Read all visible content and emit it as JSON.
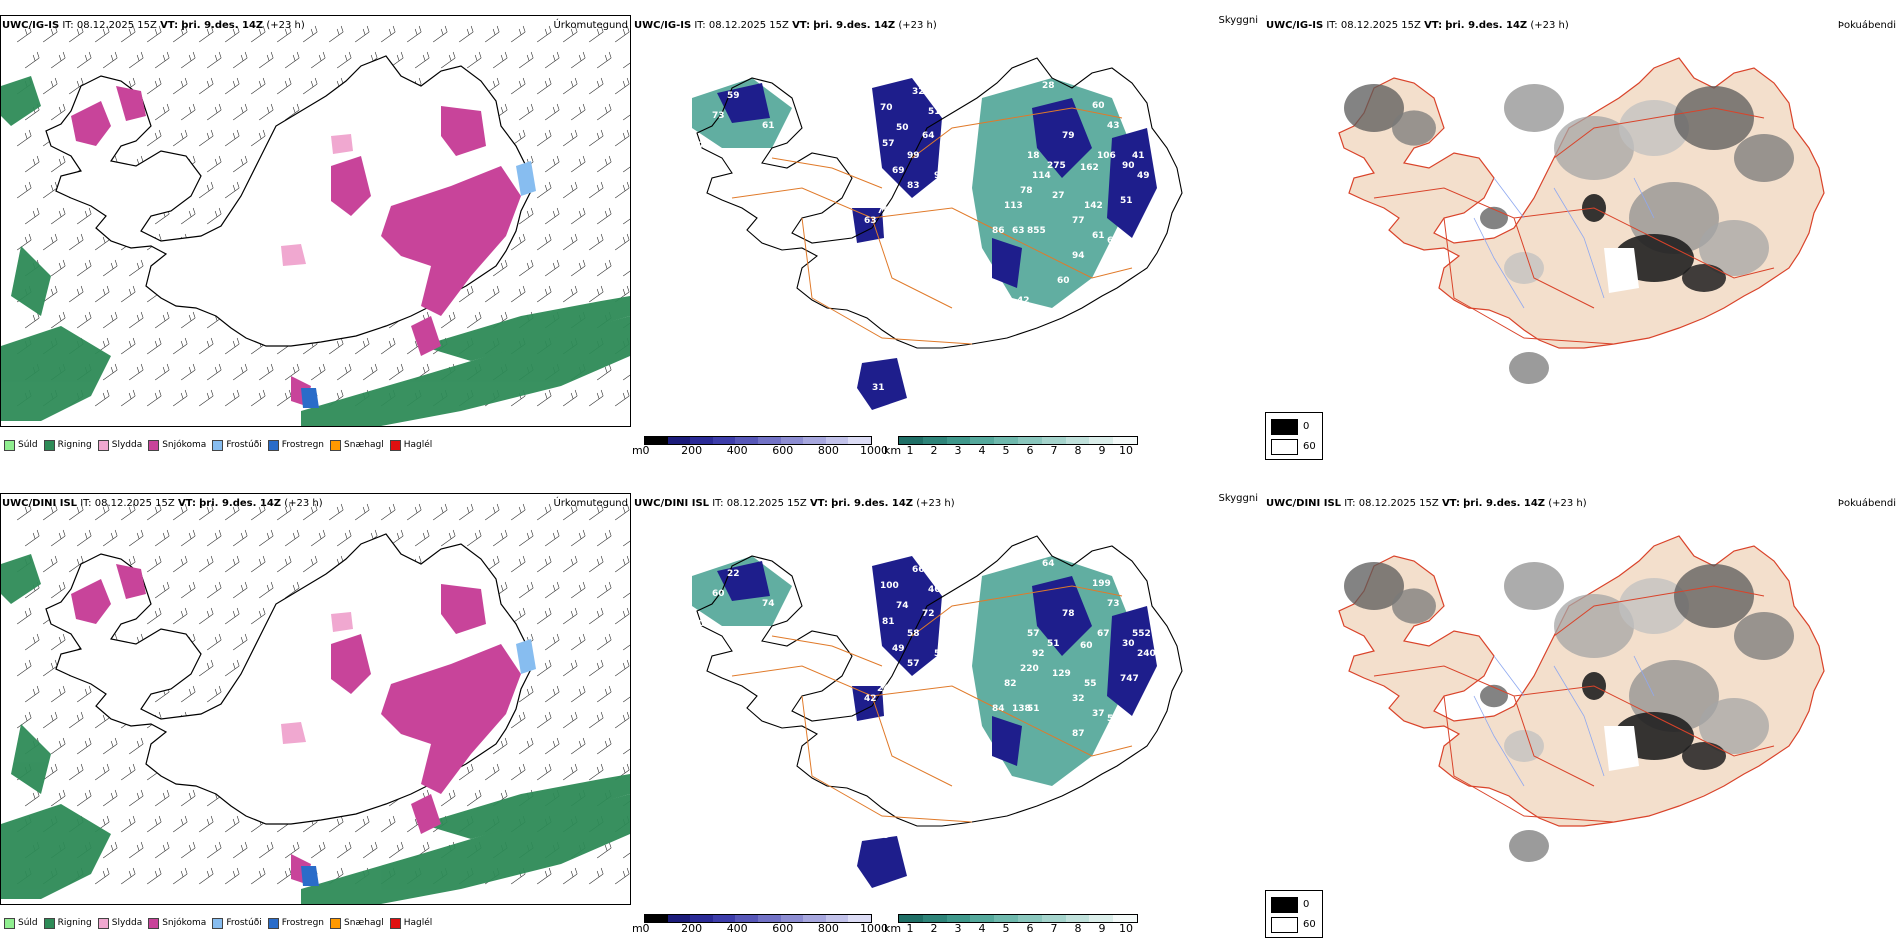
{
  "rows": [
    {
      "model": "UWC/IG-IS",
      "it_label": "IT:",
      "it_value": "08.12.2025 15Z",
      "vt_label": "VT:",
      "vt_value": "þri. 9.des. 14Z",
      "lead": "(+23 h)",
      "precip_title": "Úrkomutegund",
      "cloud_title": "Skyggni",
      "fog_title": "Þokuábendi",
      "height_labels": [
        "59",
        "73",
        "61",
        "97",
        "70",
        "32",
        "51",
        "50",
        "57",
        "64",
        "99",
        "69",
        "83",
        "95",
        "63",
        "75",
        "57",
        "31"
      ],
      "vis_labels": [
        "28",
        "60",
        "79",
        "43",
        "106",
        "275",
        "162",
        "90",
        "41",
        "49",
        "18",
        "114",
        "78",
        "27",
        "142",
        "51",
        "113",
        "86",
        "63",
        "855",
        "77",
        "61",
        "62",
        "59",
        "94",
        "60",
        "42"
      ]
    },
    {
      "model": "UWC/DINI ISL",
      "it_label": "IT:",
      "it_value": "08.12.2025 15Z",
      "vt_label": "VT:",
      "vt_value": "þri. 9.des. 14Z",
      "lead": "(+23 h)",
      "precip_title": "Úrkomutegund",
      "cloud_title": "Skyggni",
      "fog_title": "Þokuábendi",
      "height_labels": [
        "22",
        "60",
        "74",
        "101",
        "100",
        "66",
        "46",
        "74",
        "81",
        "72",
        "58",
        "49",
        "57",
        "52",
        "42",
        "24",
        "188"
      ],
      "vis_labels": [
        "64",
        "199",
        "78",
        "73",
        "67",
        "51",
        "60",
        "30",
        "552",
        "240",
        "57",
        "92",
        "220",
        "129",
        "55",
        "747",
        "82",
        "84",
        "138",
        "51",
        "32",
        "37",
        "50",
        "46",
        "87"
      ]
    }
  ],
  "precip_legend": [
    {
      "label": "Súld",
      "color": "#90ee90"
    },
    {
      "label": "Rigning",
      "color": "#2e8b57"
    },
    {
      "label": "Slydda",
      "color": "#f0a8d0"
    },
    {
      "label": "Snjókoma",
      "color": "#c8449a"
    },
    {
      "label": "Frostúði",
      "color": "#87bdf0"
    },
    {
      "label": "Frostregn",
      "color": "#2a6cc9"
    },
    {
      "label": "Snæhagl",
      "color": "#ff9900"
    },
    {
      "label": "Haglél",
      "color": "#e01010"
    }
  ],
  "height_scale": {
    "unit": "m",
    "ticks": [
      "0",
      "200",
      "400",
      "600",
      "800",
      "1000"
    ]
  },
  "vis_scale": {
    "unit": "km",
    "ticks": [
      "1",
      "2",
      "3",
      "4",
      "5",
      "6",
      "7",
      "8",
      "9",
      "10"
    ]
  },
  "fog_scale": {
    "max_label": "0",
    "min_label": "60"
  },
  "colors": {
    "snow": "#c8449a",
    "rain": "#2e8b57",
    "cloud_dark": "#1e1e8c",
    "vis_teal": "#3a9a8a",
    "roads": "#e07a2a",
    "fog_land": "#f3dfcc",
    "fog_dark": "#202020"
  }
}
